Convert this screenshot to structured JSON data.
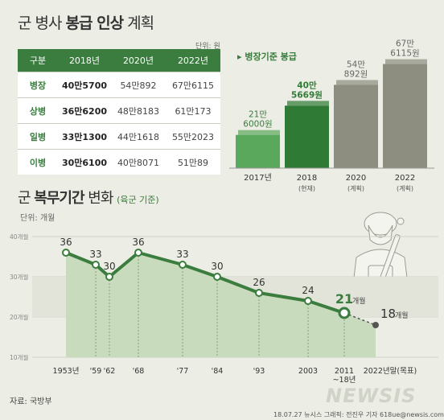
{
  "title1": {
    "prefix": "군 병사 ",
    "bold": "봉급 인상",
    "suffix": " 계획"
  },
  "unit1": "단위: 원",
  "pay_table": {
    "headers": [
      "구분",
      "2018년",
      "2020년",
      "2022년"
    ],
    "rows": [
      [
        "병장",
        "40만5700",
        "54만892",
        "67만6115"
      ],
      [
        "상병",
        "36만6200",
        "48만8183",
        "61만173"
      ],
      [
        "일병",
        "33만1300",
        "44만1618",
        "55만2023"
      ],
      [
        "이병",
        "30만6100",
        "40만8071",
        "51만89"
      ]
    ]
  },
  "bar_legend": "병장기준 봉급",
  "title2": {
    "prefix": "군 ",
    "bold": "복무기간",
    "suffix": " 변화 ",
    "sub": "(육군 기준)"
  },
  "unit2": "단위: 개월",
  "source": "자료: 국방부",
  "credit": "18.07.27  뉴시스 그래픽: 전진우 기자  618ue@newsis.com",
  "logo": "NEWSIS",
  "colors": {
    "accent": "#3a7d3e",
    "bar_light": "#5aa85c",
    "bar_dark": "#2f7a35",
    "bar_gray": "#8d8d80",
    "area": "#c9dbbd",
    "line": "#3a7d3e"
  },
  "chart_data": [
    {
      "type": "bar",
      "title": "병장기준 봉급",
      "categories": [
        "2017년",
        "2018",
        "2020",
        "2022"
      ],
      "category_sub": [
        "",
        "(현재)",
        "(계획)",
        "(계획)"
      ],
      "value_labels": [
        "21만\n6000원",
        "40만\n5669원",
        "54만\n892원",
        "67만\n6115원"
      ],
      "values": [
        216000,
        405669,
        540892,
        676115
      ],
      "ylim": [
        0,
        700000
      ]
    },
    {
      "type": "line",
      "title": "군 복무기간 변화",
      "ylabel": "단위: 개월",
      "x": [
        "1953년",
        "'59",
        "'62",
        "'68",
        "'77",
        "'84",
        "'93",
        "2003",
        "2011\n~18년",
        "2022년말(목표)"
      ],
      "y": [
        36,
        33,
        30,
        36,
        33,
        30,
        26,
        24,
        21,
        18
      ],
      "point_labels": [
        "36",
        "33",
        "30",
        "36",
        "33",
        "30",
        "26",
        "24",
        "21",
        "18"
      ],
      "unit_suffix": "개월",
      "ylim": [
        10,
        40
      ],
      "yticks": [
        10,
        20,
        30,
        40
      ],
      "ytick_labels": [
        "10개월",
        "20개월",
        "30개월",
        "40개월"
      ],
      "grid": true
    }
  ]
}
